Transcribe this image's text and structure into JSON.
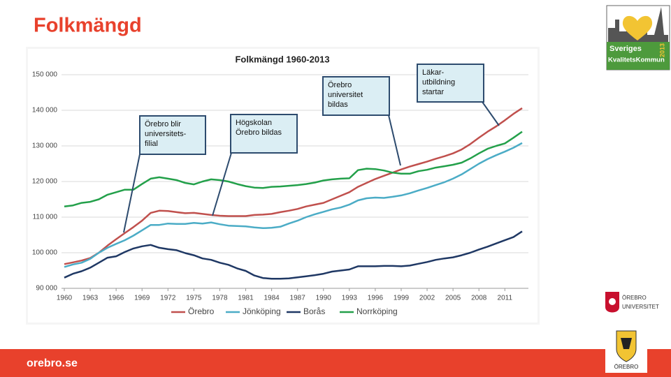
{
  "slide": {
    "title": "Folkmängd",
    "footer": "orebro.se"
  },
  "logos": {
    "quality": [
      "Sveriges",
      "KvalitetsKommun",
      "2013"
    ],
    "university": [
      "ÖREBRO",
      "UNIVERSITET"
    ],
    "city": "ÖREBRO"
  },
  "chart_data": {
    "type": "line",
    "title": "Folkmängd 1960-2013",
    "x": [
      1960,
      1961,
      1962,
      1963,
      1964,
      1965,
      1966,
      1967,
      1968,
      1969,
      1970,
      1971,
      1972,
      1973,
      1974,
      1975,
      1976,
      1977,
      1978,
      1979,
      1980,
      1981,
      1982,
      1983,
      1984,
      1985,
      1986,
      1987,
      1988,
      1989,
      1990,
      1991,
      1992,
      1993,
      1994,
      1995,
      1996,
      1997,
      1998,
      1999,
      2000,
      2001,
      2002,
      2003,
      2004,
      2005,
      2006,
      2007,
      2008,
      2009,
      2010,
      2011,
      2012,
      2013
    ],
    "series": [
      {
        "name": "Örebro",
        "color": "#c0504d",
        "values": [
          96800,
          97300,
          97800,
          98500,
          100000,
          102000,
          103800,
          105500,
          107200,
          109000,
          111200,
          111800,
          111700,
          111400,
          111100,
          111200,
          110900,
          110600,
          110400,
          110300,
          110300,
          110300,
          110600,
          110700,
          110900,
          111400,
          111800,
          112300,
          113000,
          113500,
          114000,
          115000,
          116000,
          117000,
          118500,
          119600,
          120700,
          121600,
          122500,
          123400,
          124200,
          124900,
          125600,
          126400,
          127100,
          127900,
          129000,
          130500,
          132300,
          134000,
          135500,
          137200,
          139000,
          140600
        ]
      },
      {
        "name": "Jönköping",
        "color": "#4bacc6",
        "values": [
          96000,
          96700,
          97200,
          98300,
          100000,
          101400,
          102500,
          103500,
          104800,
          106300,
          107800,
          107800,
          108200,
          108100,
          108100,
          108400,
          108200,
          108500,
          108000,
          107600,
          107500,
          107400,
          107100,
          106900,
          107000,
          107300,
          108200,
          109000,
          110000,
          110800,
          111500,
          112200,
          112700,
          113500,
          114700,
          115300,
          115500,
          115400,
          115700,
          116100,
          116700,
          117500,
          118200,
          119000,
          119800,
          120800,
          122000,
          123500,
          125000,
          126300,
          127400,
          128400,
          129500,
          130800
        ]
      },
      {
        "name": "Borås",
        "color": "#1f3864",
        "values": [
          93000,
          94100,
          94800,
          95800,
          97200,
          98600,
          99000,
          100200,
          101200,
          101800,
          102200,
          101400,
          101000,
          100700,
          99900,
          99300,
          98400,
          98000,
          97200,
          96600,
          95600,
          94900,
          93600,
          92900,
          92700,
          92700,
          92800,
          93100,
          93400,
          93700,
          94100,
          94700,
          95000,
          95300,
          96200,
          96200,
          96200,
          96300,
          96300,
          96200,
          96400,
          96900,
          97400,
          98000,
          98400,
          98700,
          99300,
          100000,
          100900,
          101700,
          102600,
          103500,
          104400,
          106000
        ]
      },
      {
        "name": "Norrköping",
        "color": "#23a04a",
        "values": [
          113000,
          113300,
          114000,
          114300,
          115000,
          116300,
          117000,
          117700,
          117700,
          119300,
          120800,
          121200,
          120800,
          120400,
          119600,
          119200,
          120000,
          120600,
          120400,
          120000,
          119300,
          118700,
          118300,
          118200,
          118500,
          118600,
          118800,
          119000,
          119300,
          119700,
          120300,
          120600,
          120800,
          120900,
          123200,
          123600,
          123500,
          123100,
          122500,
          122200,
          122200,
          122900,
          123300,
          123900,
          124300,
          124700,
          125300,
          126500,
          127900,
          129200,
          130000,
          130700,
          132300,
          134000
        ]
      }
    ],
    "xlim": [
      1960,
      2013
    ],
    "xticks": [
      1960,
      1963,
      1966,
      1969,
      1972,
      1975,
      1978,
      1981,
      1984,
      1987,
      1990,
      1993,
      1996,
      1999,
      2002,
      2005,
      2008,
      2011
    ],
    "ylim": [
      90000,
      150000
    ],
    "yticks": [
      {
        "value": 90000,
        "label": "90 000"
      },
      {
        "value": 100000,
        "label": "100 000"
      },
      {
        "value": 110000,
        "label": "110 000"
      },
      {
        "value": 120000,
        "label": "120 000"
      },
      {
        "value": 130000,
        "label": "130 000"
      },
      {
        "value": 140000,
        "label": "140 000"
      },
      {
        "value": 150000,
        "label": "150 000"
      }
    ],
    "grid": true,
    "legend": "bottom",
    "annotations": [
      [
        "Örebro blir",
        "universitets-",
        "filial"
      ],
      [
        "Högskolan",
        "Örebro bildas"
      ],
      [
        "Örebro",
        "universitet",
        "bildas"
      ],
      [
        "Läkar-",
        "utbildning",
        "startar"
      ]
    ]
  }
}
